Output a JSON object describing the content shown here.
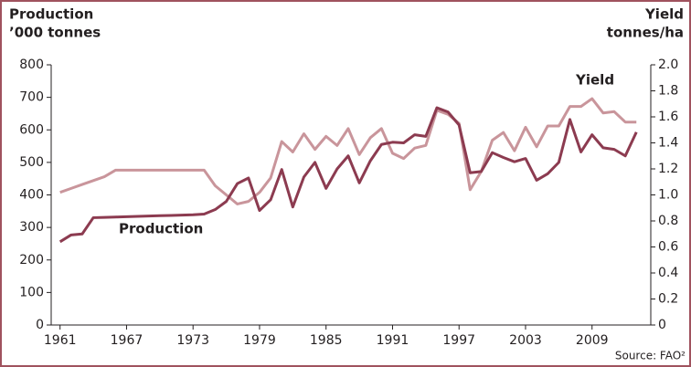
{
  "chart_data": {
    "type": "line",
    "ylabel": [
      "Production",
      "’000 tonnes"
    ],
    "y2label": [
      "Yield",
      "tonnes/ha"
    ],
    "source": "Source: FAO²",
    "annotations": [
      {
        "text": "Production"
      },
      {
        "text": "Yield"
      }
    ],
    "x": [
      1961,
      1962,
      1963,
      1964,
      1965,
      1966,
      1967,
      1968,
      1969,
      1970,
      1971,
      1972,
      1973,
      1974,
      1975,
      1976,
      1977,
      1978,
      1979,
      1980,
      1981,
      1982,
      1983,
      1984,
      1985,
      1986,
      1987,
      1988,
      1989,
      1990,
      1991,
      1992,
      1993,
      1994,
      1995,
      1996,
      1997,
      1998,
      1999,
      2000,
      2001,
      2002,
      2003,
      2004,
      2005,
      2006,
      2007,
      2008,
      2009,
      2010,
      2011,
      2012,
      2013
    ],
    "series": [
      {
        "name": "Production",
        "color": "#8c3b50",
        "values": [
          256,
          277,
          280,
          330,
          331,
          332,
          333,
          334,
          335,
          336,
          337,
          338,
          339,
          341,
          355,
          380,
          435,
          452,
          352,
          385,
          478,
          363,
          455,
          500,
          420,
          480,
          520,
          437,
          505,
          555,
          562,
          560,
          585,
          580,
          668,
          655,
          615,
          468,
          472,
          530,
          515,
          502,
          512,
          445,
          465,
          500,
          632,
          532,
          585,
          545,
          540,
          520,
          593
        ]
      },
      {
        "name": "Yield",
        "color": "#c9959b",
        "axis": "y2",
        "values": [
          1.02,
          1.05,
          1.08,
          1.11,
          1.14,
          1.19,
          1.19,
          1.19,
          1.19,
          1.19,
          1.19,
          1.19,
          1.19,
          1.19,
          1.07,
          1.0,
          0.93,
          0.95,
          1.02,
          1.13,
          1.41,
          1.33,
          1.47,
          1.35,
          1.45,
          1.38,
          1.51,
          1.31,
          1.44,
          1.51,
          1.32,
          1.28,
          1.36,
          1.38,
          1.65,
          1.62,
          1.55,
          1.04,
          1.18,
          1.42,
          1.48,
          1.34,
          1.52,
          1.37,
          1.53,
          1.53,
          1.68,
          1.68,
          1.74,
          1.63,
          1.64,
          1.56,
          1.56
        ]
      }
    ],
    "xlim": [
      1960.2,
      2014.3
    ],
    "xticks": [
      1961,
      1967,
      1973,
      1979,
      1985,
      1991,
      1997,
      2003,
      2009
    ],
    "ylim": [
      0,
      800
    ],
    "yticks": [
      0,
      100,
      200,
      300,
      400,
      500,
      600,
      700,
      800
    ],
    "y2lim": [
      0,
      2
    ],
    "y2ticks": [
      0,
      0.2,
      0.4,
      0.6,
      0.8,
      {
        "value": 1,
        "label": "1.0"
      },
      1.2,
      1.4,
      1.6,
      1.8,
      {
        "value": 2,
        "label": "2.0"
      }
    ]
  }
}
